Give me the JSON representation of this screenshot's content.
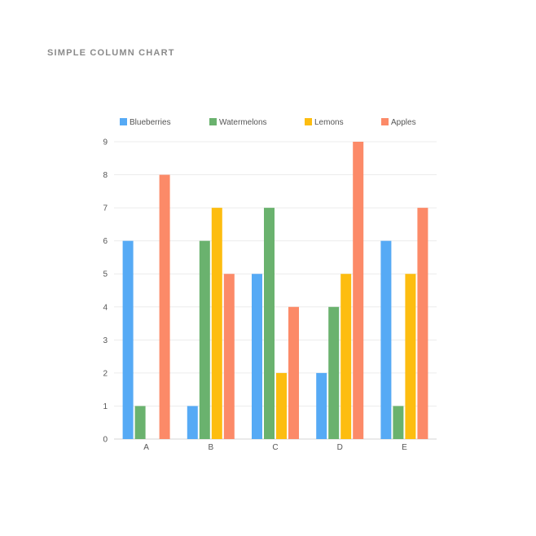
{
  "chart_data": {
    "type": "bar",
    "title": "SIMPLE COLUMN CHART",
    "categories": [
      "A",
      "B",
      "C",
      "D",
      "E"
    ],
    "series": [
      {
        "name": "Blueberries",
        "color": "#56aaf5",
        "values": [
          6,
          1,
          5,
          2,
          6
        ]
      },
      {
        "name": "Watermelons",
        "color": "#6ab26e",
        "values": [
          1,
          6,
          7,
          4,
          1
        ]
      },
      {
        "name": "Lemons",
        "color": "#fdbd10",
        "values": [
          0,
          7,
          2,
          5,
          5
        ]
      },
      {
        "name": "Apples",
        "color": "#fc8a68",
        "values": [
          8,
          5,
          4,
          9,
          7
        ]
      }
    ],
    "ylim": [
      0,
      9
    ],
    "yticks": [
      "0",
      "1",
      "2",
      "3",
      "4",
      "5",
      "6",
      "7",
      "8",
      "9"
    ],
    "xlabel": "",
    "ylabel": "",
    "grid": true,
    "legend_position": "top"
  }
}
